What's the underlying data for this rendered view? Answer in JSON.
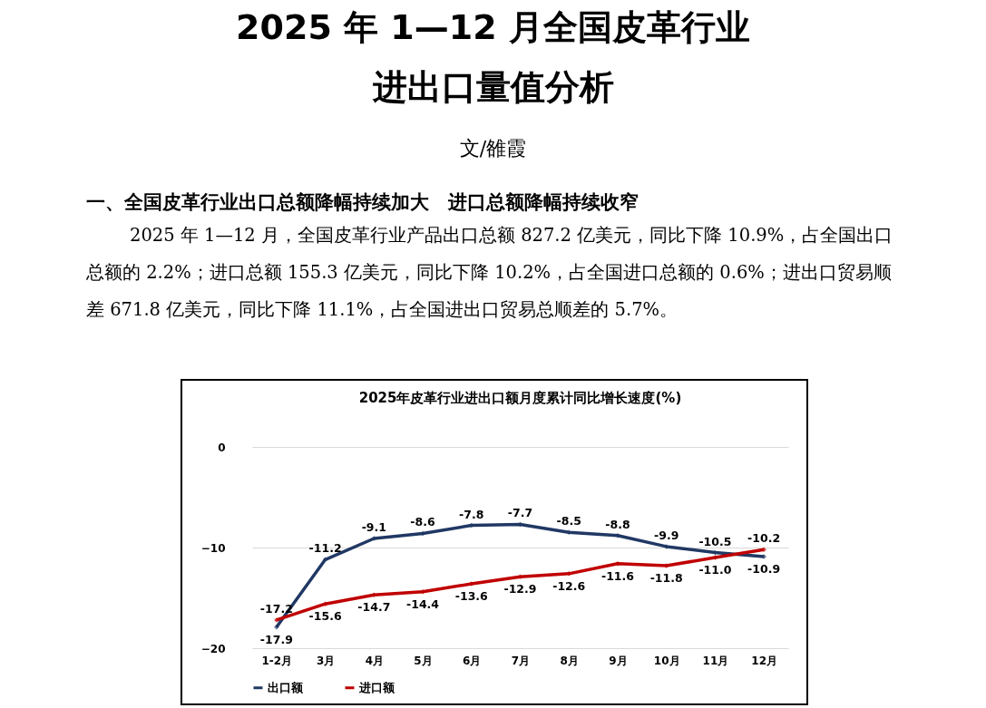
{
  "chart_data": {
    "type": "line",
    "title": "2025年皮革行业进出口额月度累计同比增长速度(%)",
    "annotations": [
      "2025 年 1—12 月全国皮革行业",
      "进出口量值分析",
      "文/雒霞",
      "一、全国皮革行业出口总额降幅持续加大　进口总额降幅持续收窄",
      "2025 年 1—12 月，全国皮革行业产品出口总额 827.2 亿美元，同比下降 10.9%，占全国出口总额的 2.2%；进口总额 155.3 亿美元，同比下降 10.2%，占全国进口总额的 0.6%；进出口贸易顺差 671.8 亿美元，同比下降 11.1%，占全国进出口贸易总顺差的 5.7%。"
    ],
    "categories": [
      "1-2月",
      "3月",
      "4月",
      "5月",
      "6月",
      "7月",
      "8月",
      "9月",
      "10月",
      "11月",
      "12月"
    ],
    "series": [
      {
        "name": "出口额",
        "color": "#203864",
        "values": [
          -17.9,
          -11.2,
          -9.1,
          -8.6,
          -7.8,
          -7.7,
          -8.5,
          -8.8,
          -9.9,
          -10.5,
          -10.9
        ],
        "value_labels": [
          "-17.9",
          "-11.2",
          "-9.1",
          "-8.6",
          "-7.8",
          "-7.7",
          "-8.5",
          "-8.8",
          "-9.9",
          "-10.5",
          "-10.9"
        ]
      },
      {
        "name": "进口额",
        "color": "#c00000",
        "values": [
          -17.2,
          -15.6,
          -14.7,
          -14.4,
          -13.6,
          -12.9,
          -12.6,
          -11.6,
          -11.8,
          -11.0,
          -10.2
        ],
        "value_labels": [
          "-17.2",
          "-15.6",
          "-14.7",
          "-14.4",
          "-13.6",
          "-12.9",
          "-12.6",
          "-11.6",
          "-11.8",
          "-11.0",
          "-10.2"
        ]
      }
    ],
    "ylim": [
      -20,
      0
    ],
    "yticks": [
      -20,
      -10,
      0
    ],
    "grid": "y",
    "legend": "bottom",
    "marker": "diamond",
    "line_style": "solid"
  }
}
